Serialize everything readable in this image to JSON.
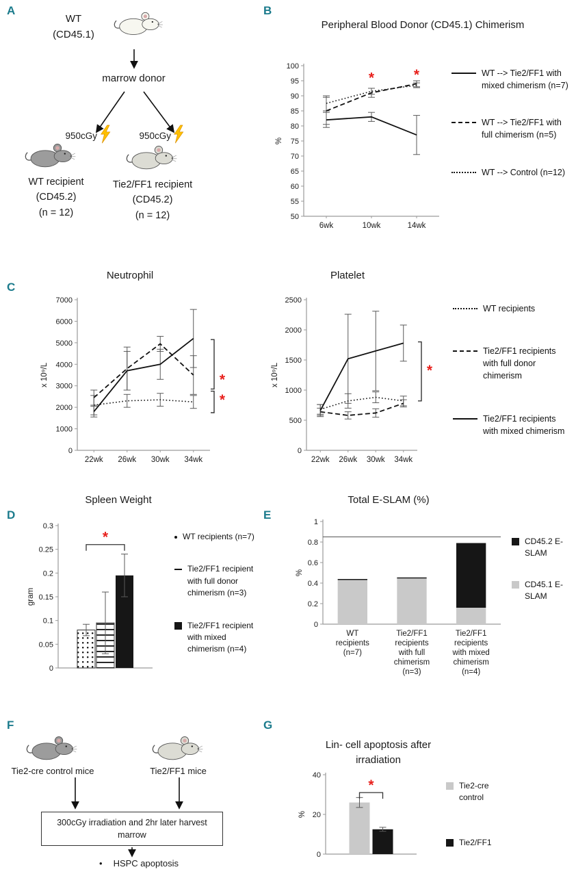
{
  "colors": {
    "panel_label": "#1b7b8c",
    "significance_star": "#e8211d",
    "bolt": "#FFC000",
    "bar_black": "#161616",
    "bar_gray": "#c9c9c9",
    "axis": "#9a9a9a"
  },
  "panels": {
    "A": {
      "label": "A",
      "donor_lines": [
        "WT",
        "(CD45.1)"
      ],
      "marrow_donor": "marrow donor",
      "dose": "950cGy",
      "wt_recipient_lines": [
        "WT recipient",
        "(CD45.2)",
        "(n = 12)"
      ],
      "tie2_recipient_lines": [
        "Tie2/FF1 recipient",
        "(CD45.2)",
        "(n = 12)"
      ]
    },
    "B": {
      "label": "B",
      "legend": [
        {
          "style": "solid",
          "label": "WT --> Tie2/FF1 with mixed chimerism (n=7)"
        },
        {
          "style": "dashed",
          "label": "WT --> Tie2/FF1 with full chimerism (n=5)"
        },
        {
          "style": "dotted",
          "label": "WT --> Control (n=12)"
        }
      ]
    },
    "C": {
      "label": "C",
      "legend": [
        {
          "style": "dotted",
          "label": "WT recipients"
        },
        {
          "style": "dashed",
          "label": "Tie2/FF1 recipients with full donor chimerism"
        },
        {
          "style": "solid",
          "label": "Tie2/FF1 recipients with mixed chimerism"
        }
      ]
    },
    "D": {
      "label": "D",
      "legend": [
        {
          "marker": "dot",
          "label": "WT recipients (n=7)"
        },
        {
          "marker": "dash",
          "label": "Tie2/FF1 recipient with full donor chimerism (n=3)"
        },
        {
          "marker": "black-square",
          "label": "Tie2/FF1 recipient with mixed chimerism (n=4)"
        }
      ]
    },
    "E": {
      "label": "E",
      "legend": [
        {
          "marker": "black-square",
          "label": "CD45.2 E-SLAM"
        },
        {
          "marker": "gray-square",
          "label": "CD45.1 E-SLAM"
        }
      ]
    },
    "F": {
      "label": "F",
      "left_mouse_label": "Tie2-cre control mice",
      "right_mouse_label": "Tie2/FF1 mice",
      "box_lines": [
        "300cGy irradiation and 2hr later harvest",
        "marrow"
      ],
      "bullet": "•",
      "apoptosis_label": "HSPC apoptosis"
    },
    "G": {
      "label": "G",
      "legend": [
        {
          "marker": "gray-square",
          "label": "Tie2-cre control"
        },
        {
          "marker": "black-square",
          "label": "Tie2/FF1"
        }
      ]
    }
  },
  "chart_data": [
    {
      "id": "chimerism",
      "type": "line",
      "title": "Peripheral Blood Donor (CD45.1) Chimerism",
      "categories": [
        "6wk",
        "10wk",
        "14wk"
      ],
      "xlabel": "",
      "ylabel": "%",
      "ylim": [
        50,
        100
      ],
      "ytick": 5,
      "series": [
        {
          "name": "WT --> Tie2/FF1 with mixed chimerism (n=7)",
          "style": "solid",
          "values": [
            82,
            83,
            77
          ],
          "err": [
            2.5,
            1.5,
            6.5
          ]
        },
        {
          "name": "WT --> Tie2/FF1 with full chimerism (n=5)",
          "style": "dashed",
          "values": [
            85,
            91,
            94
          ],
          "err": [
            4.5,
            1.5,
            1
          ]
        },
        {
          "name": "WT --> Control (n=12)",
          "style": "dotted",
          "values": [
            87.5,
            91.5,
            93.5
          ],
          "err": [
            2.5,
            1,
            0.8
          ]
        }
      ],
      "stars": [
        {
          "x": 1,
          "y": 96.5
        },
        {
          "x": 2,
          "y": 97.5
        }
      ]
    },
    {
      "id": "neutrophil",
      "type": "line",
      "title": "Neutrophil",
      "categories": [
        "22wk",
        "26wk",
        "30wk",
        "34wk"
      ],
      "xlabel": "",
      "ylabel": "x 10⁹/L",
      "ylim": [
        0,
        7000
      ],
      "ytick": 1000,
      "series": [
        {
          "name": "WT recipients",
          "style": "dotted",
          "values": [
            2100,
            2300,
            2350,
            2250
          ],
          "err": [
            450,
            300,
            300,
            300
          ]
        },
        {
          "name": "Tie2/FF1 recipients with full donor chimerism",
          "style": "dashed",
          "values": [
            2450,
            3800,
            4950,
            3500
          ],
          "err": [
            350,
            1000,
            350,
            900
          ]
        },
        {
          "name": "Tie2/FF1 recipients with mixed chimerism",
          "style": "solid",
          "values": [
            1800,
            3700,
            4000,
            5200
          ],
          "err": [
            250,
            900,
            700,
            1350
          ]
        }
      ],
      "brackets": [
        {
          "y1": 5150,
          "y2": 2850,
          "star_y": 3300
        },
        {
          "y1": 2750,
          "y2": 1750,
          "star_y": 2350
        }
      ]
    },
    {
      "id": "platelet",
      "type": "line",
      "title": "Platelet",
      "categories": [
        "22wk",
        "26wk",
        "30wk",
        "34wk"
      ],
      "xlabel": "",
      "ylabel": "x 10⁹/L",
      "ylim": [
        0,
        2500
      ],
      "ytick": 500,
      "series": [
        {
          "name": "WT recipients",
          "style": "dotted",
          "values": [
            680,
            820,
            880,
            820
          ],
          "err": [
            80,
            120,
            90,
            80
          ]
        },
        {
          "name": "Tie2/FF1 recipients with full donor chimerism",
          "style": "dashed",
          "values": [
            640,
            580,
            620,
            780
          ],
          "err": [
            60,
            60,
            70,
            60
          ]
        },
        {
          "name": "Tie2/FF1 recipients with mixed chimerism",
          "style": "solid",
          "values": [
            660,
            1520,
            1650,
            1780
          ],
          "err": [
            100,
            740,
            660,
            300
          ]
        }
      ],
      "brackets": [
        {
          "y1": 1800,
          "y2": 820,
          "star_y": 1330
        }
      ]
    },
    {
      "id": "spleen_weight",
      "type": "bar",
      "title": "Spleen Weight",
      "ylabel": "gram",
      "ylim": [
        0,
        0.3
      ],
      "ytick": 0.05,
      "layout": "cluster",
      "show_x_labels": false,
      "categories": [
        "WT recipients (n=7)",
        "Tie2/FF1 recipient with full donor chimerism (n=3)",
        "Tie2/FF1 recipient with mixed chimerism (n=4)"
      ],
      "bars": [
        {
          "label": "WT recipients (n=7)",
          "pattern": "dots",
          "value": 0.08,
          "err": 0.012
        },
        {
          "label": "Tie2/FF1 recipient with full donor chimerism (n=3)",
          "pattern": "hlines",
          "value": 0.095,
          "err": 0.065
        },
        {
          "label": "Tie2/FF1 recipient with mixed chimerism (n=4)",
          "pattern": "black",
          "value": 0.195,
          "err": 0.045
        }
      ],
      "sig": {
        "from": 0,
        "to": 2,
        "y": 0.26,
        "star": "*"
      }
    },
    {
      "id": "total_eslam",
      "type": "stacked-bar",
      "title": "Total E-SLAM (%)",
      "ylabel": "%",
      "ylim": [
        0,
        1
      ],
      "ytick": 0.2,
      "categories": [
        [
          "WT",
          "recipients",
          "(n=7)"
        ],
        [
          "Tie2/FF1",
          "recipients",
          "with full",
          "chimerism",
          "(n=3)"
        ],
        [
          "Tie2/FF1",
          "recipients",
          "with mixed",
          "chimerism",
          "(n=4)"
        ]
      ],
      "series": [
        {
          "name": "CD45.1 E-SLAM",
          "pattern": "gray",
          "values": [
            0.43,
            0.445,
            0.16
          ]
        },
        {
          "name": "CD45.2 E-SLAM",
          "pattern": "black",
          "values": [
            0.01,
            0.01,
            0.63
          ]
        }
      ],
      "topline": 0.85
    },
    {
      "id": "lin_apoptosis",
      "type": "bar",
      "title": "Lin- cell apoptosis after irradiation",
      "ylabel": "%",
      "ylim": [
        0,
        40
      ],
      "ytick": 20,
      "layout": "cluster",
      "show_x_labels": false,
      "categories": [
        "Tie2-cre control",
        "Tie2/FF1"
      ],
      "bars": [
        {
          "label": "Tie2-cre control",
          "pattern": "gray",
          "value": 26,
          "err": 2.5
        },
        {
          "label": "Tie2/FF1",
          "pattern": "black",
          "value": 12.5,
          "err": 1
        }
      ],
      "sig": {
        "from": 0,
        "to": 1,
        "y": 31,
        "star": "*"
      }
    }
  ]
}
